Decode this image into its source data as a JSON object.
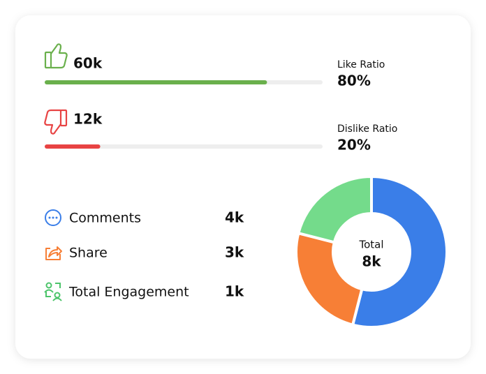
{
  "likes": {
    "count": "60k",
    "ratio_label": "Like Ratio",
    "ratio": {
      "value": 80,
      "label": "80%"
    },
    "color": "#6ab04c"
  },
  "dislikes": {
    "count": "12k",
    "ratio_label": "Dislike Ratio",
    "ratio": {
      "value": 20,
      "label": "20%"
    },
    "color": "#e84343"
  },
  "stats": [
    {
      "label": "Comments",
      "value": "4k"
    },
    {
      "label": "Share",
      "value": "3k"
    },
    {
      "label": "Total Engagement",
      "value": "1k"
    }
  ],
  "donut": {
    "center_label": "Total",
    "center_value": "8k",
    "segments": [
      {
        "color": "#3a7ee8",
        "value": 54
      },
      {
        "color": "#f77f36",
        "value": 25
      },
      {
        "color": "#74db8b",
        "value": 21
      }
    ]
  }
}
